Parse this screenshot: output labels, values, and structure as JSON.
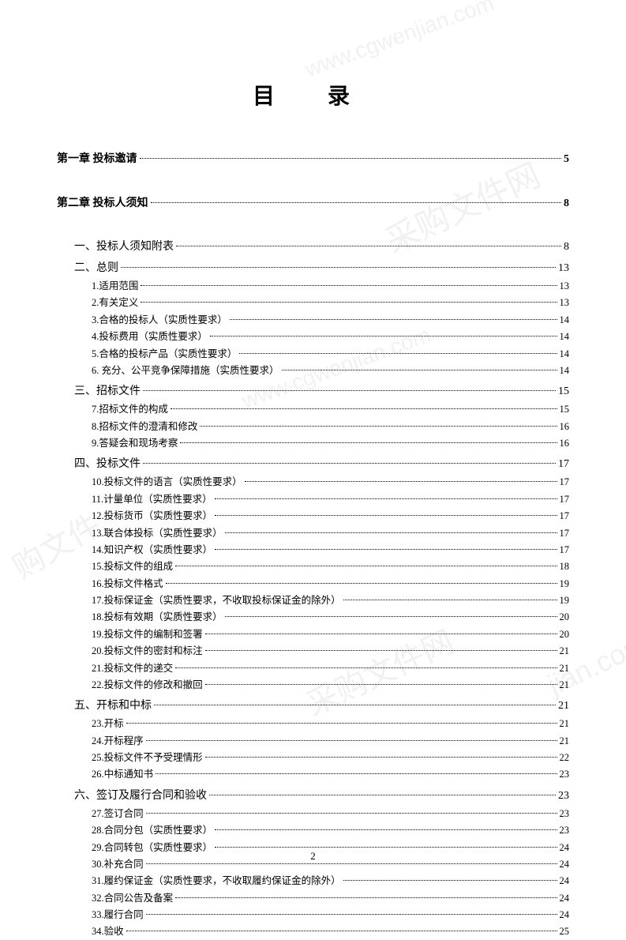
{
  "title": "目 录",
  "page_number": "2",
  "watermarks": [
    "www.cgwenjian.com",
    "采购文件网",
    "www.cgwenjian.com",
    "www.cgwenjian",
    "购文件",
    "采购文件网",
    "jian.com",
    "购"
  ],
  "chapters": [
    {
      "label": "第一章  投标邀请",
      "page": "5"
    },
    {
      "label": "第二章  投标人须知",
      "page": "8"
    }
  ],
  "sections": [
    {
      "label": "一、投标人须知附表",
      "page": "8",
      "items": []
    },
    {
      "label": "二、总则",
      "page": "13",
      "items": [
        {
          "label": "1.适用范围",
          "page": "13"
        },
        {
          "label": "2.有关定义",
          "page": "13"
        },
        {
          "label": "3.合格的投标人（实质性要求）",
          "page": "14"
        },
        {
          "label": "4.投标费用（实质性要求）",
          "page": "14"
        },
        {
          "label": "5.合格的投标产品（实质性要求）",
          "page": "14"
        },
        {
          "label": "6. 充分、公平竞争保障措施（实质性要求）",
          "page": "14"
        }
      ]
    },
    {
      "label": "三、招标文件",
      "page": "15",
      "items": [
        {
          "label": "7.招标文件的构成",
          "page": "15"
        },
        {
          "label": "8.招标文件的澄清和修改",
          "page": "16"
        },
        {
          "label": "9.答疑会和现场考察",
          "page": "16"
        }
      ]
    },
    {
      "label": "四、投标文件",
      "page": "17",
      "items": [
        {
          "label": "10.投标文件的语言（实质性要求）",
          "page": "17"
        },
        {
          "label": "11.计量单位（实质性要求）",
          "page": "17"
        },
        {
          "label": "12.投标货币（实质性要求）",
          "page": "17"
        },
        {
          "label": "13.联合体投标（实质性要求）",
          "page": "17"
        },
        {
          "label": "14.知识产权（实质性要求）",
          "page": "17"
        },
        {
          "label": "15.投标文件的组成",
          "page": "18"
        },
        {
          "label": "16.投标文件格式",
          "page": "19"
        },
        {
          "label": "17.投标保证金（实质性要求，不收取投标保证金的除外）",
          "page": "19"
        },
        {
          "label": "18.投标有效期（实质性要求）",
          "page": "20"
        },
        {
          "label": "19.投标文件的编制和签署",
          "page": "20"
        },
        {
          "label": "20.投标文件的密封和标注",
          "page": "21"
        },
        {
          "label": "21.投标文件的递交",
          "page": "21"
        },
        {
          "label": "22.投标文件的修改和撤回",
          "page": "21"
        }
      ]
    },
    {
      "label": "五、开标和中标",
      "page": "21",
      "items": [
        {
          "label": "23.开标",
          "page": "21"
        },
        {
          "label": "24.开标程序",
          "page": "21"
        },
        {
          "label": "25.投标文件不予受理情形",
          "page": "22"
        },
        {
          "label": "26.中标通知书",
          "page": "23"
        }
      ]
    },
    {
      "label": "六、签订及履行合同和验收",
      "page": "23",
      "items": [
        {
          "label": "27.签订合同",
          "page": "23"
        },
        {
          "label": "28.合同分包（实质性要求）",
          "page": "23"
        },
        {
          "label": "29.合同转包（实质性要求）",
          "page": "24"
        },
        {
          "label": "30.补充合同",
          "page": "24"
        },
        {
          "label": "31.履约保证金（实质性要求，不收取履约保证金的除外）",
          "page": "24"
        },
        {
          "label": "32.合同公告及备案",
          "page": "24"
        },
        {
          "label": "33.履行合同",
          "page": "24"
        },
        {
          "label": "34.验收",
          "page": "25"
        }
      ]
    }
  ]
}
